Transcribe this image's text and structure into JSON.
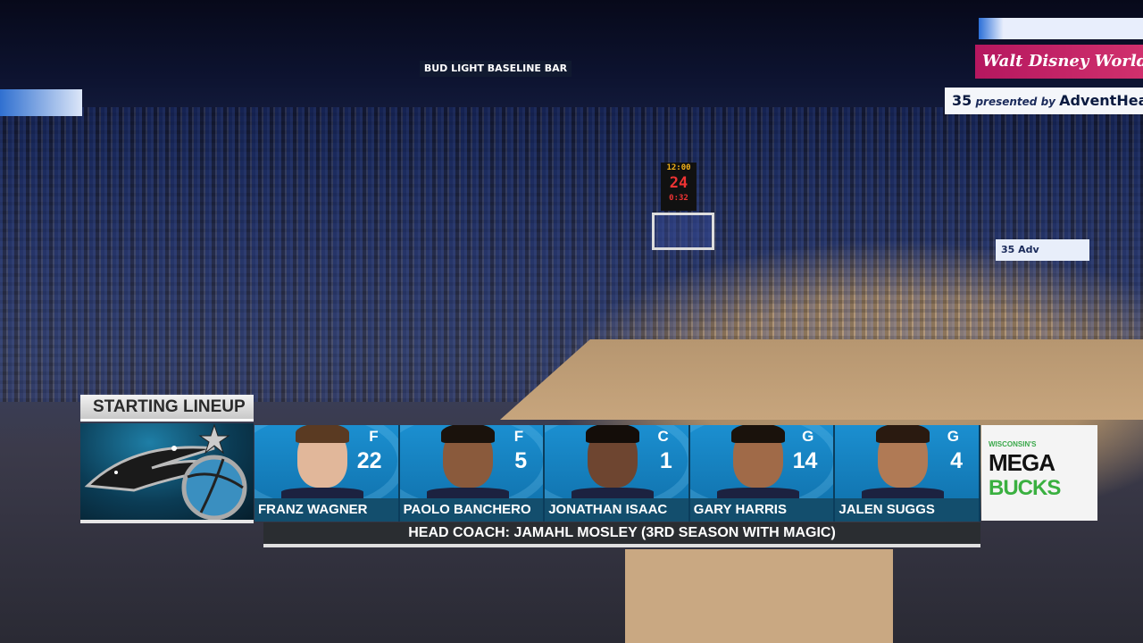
{
  "arena": {
    "baseline_sign": "BUD LIGHT BASELINE BAR",
    "disney_sign": "Walt Disney World",
    "advent_sign": {
      "number": "35",
      "presented_by": "presented by",
      "sponsor": "AdventHealth"
    },
    "side_sign": "35 Adv",
    "shot_clock": {
      "game_clock": "12:00",
      "shot_clock": "24",
      "period_time": "0:32"
    }
  },
  "graphic": {
    "title": "STARTING LINEUP",
    "team_logo": "orlando-magic-logo",
    "players": [
      {
        "name": "FRANZ WAGNER",
        "position": "F",
        "number": "22"
      },
      {
        "name": "PAOLO BANCHERO",
        "position": "F",
        "number": "5"
      },
      {
        "name": "JONATHAN ISAAC",
        "position": "C",
        "number": "1"
      },
      {
        "name": "GARY HARRIS",
        "position": "G",
        "number": "14"
      },
      {
        "name": "JALEN SUGGS",
        "position": "G",
        "number": "4"
      }
    ],
    "coach": "HEAD COACH:  JAMAHL MOSLEY (3RD SEASON WITH MAGIC)",
    "sponsor": {
      "line1": "WISCONSIN'S",
      "line2": "MEGA",
      "line3": "BUCKS"
    },
    "colors": {
      "card": "#1b8fd0",
      "name_bar": "#134e6d",
      "coach_bar": "#2a2d31",
      "sponsor_green": "#3ab040"
    }
  }
}
